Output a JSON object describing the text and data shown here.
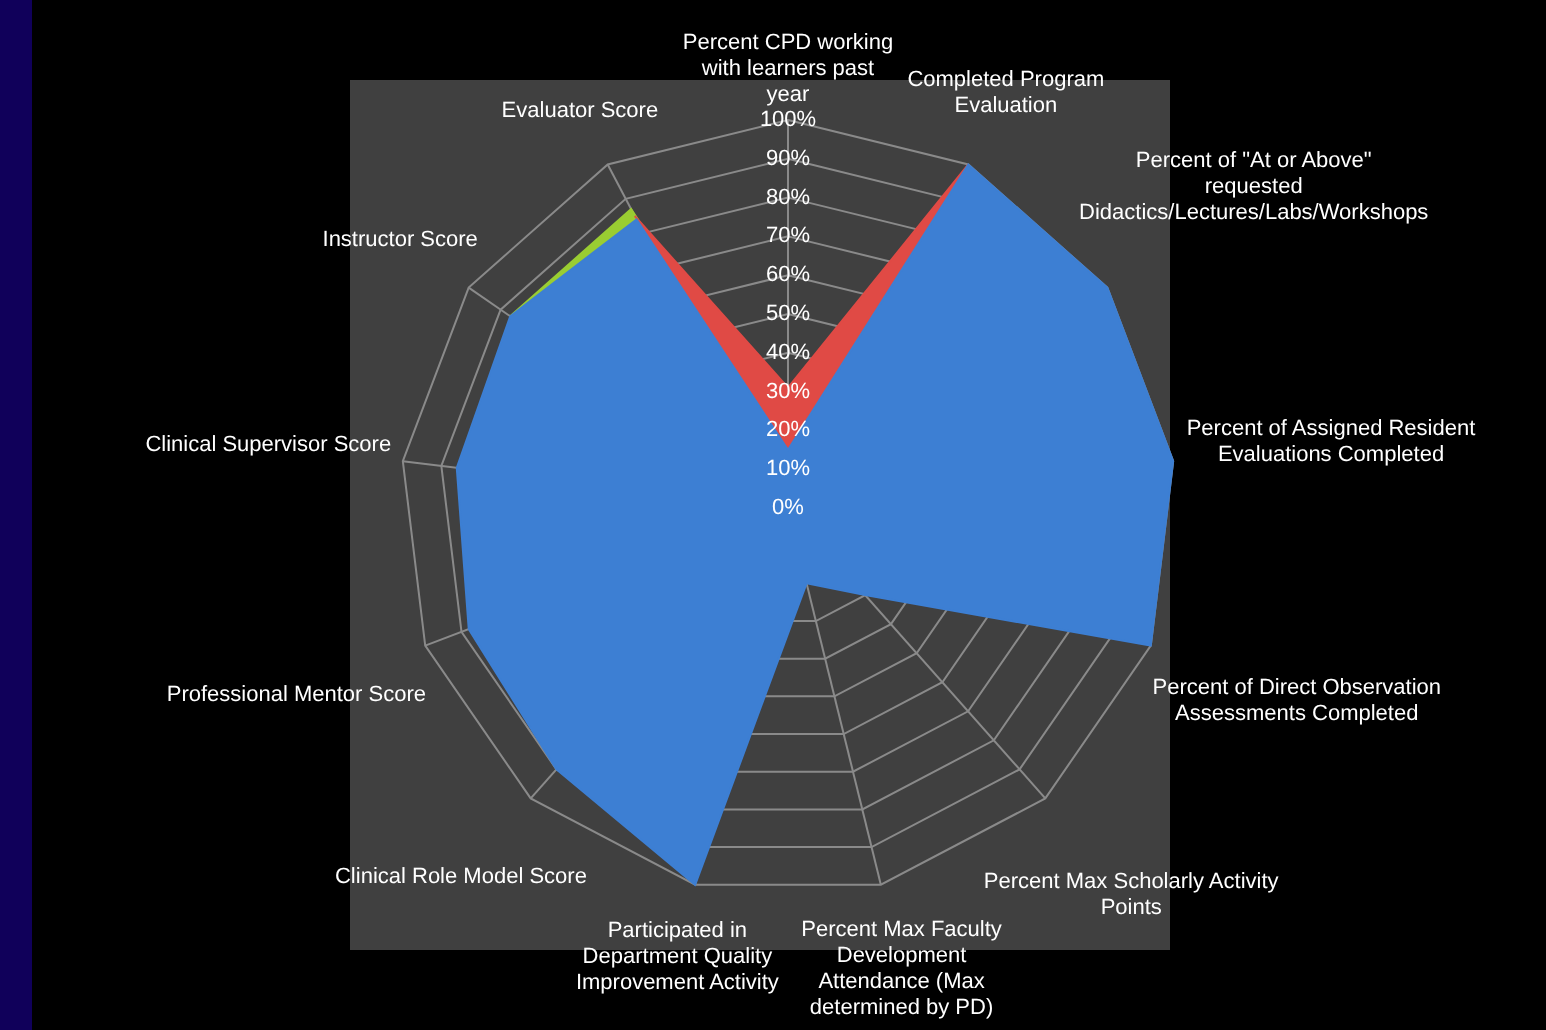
{
  "chart_data": {
    "type": "radar",
    "categories": [
      "Percent CPD working with learners past year",
      "Completed Program Evaluation",
      "Percent of \"At or Above\" requested Didactics/Lectures/Labs/Workshops",
      "Percent of Assigned Resident Evaluations Completed",
      "Percent of Direct Observation Assessments Completed",
      "Percent Max Scholarly Activity Points",
      "Percent Max Faculty Development Attendance (Max determined by PD)",
      "Participated in Department Quality Improvement Activity",
      "Clinical Role Model Score",
      "Professional Mentor Score",
      "Clinical Supervisor Score",
      "Instructor Score",
      "Evaluator Score"
    ],
    "series": [
      {
        "color": "#3d7fd3",
        "values": [
          15,
          100,
          100,
          100,
          100,
          30,
          20,
          100,
          90,
          88,
          86,
          87,
          84
        ]
      },
      {
        "color": "#e04a45",
        "values": [
          31,
          100,
          null,
          null,
          null,
          null,
          null,
          null,
          null,
          null,
          null,
          null,
          85
        ]
      },
      {
        "color": "#9acd32",
        "values": [
          15,
          null,
          null,
          null,
          null,
          null,
          null,
          null,
          null,
          null,
          null,
          87,
          87
        ]
      }
    ],
    "ylim": [
      0,
      100
    ],
    "yticks": [
      {
        "value": 0,
        "label": "0%"
      },
      {
        "value": 10,
        "label": "10%"
      },
      {
        "value": 20,
        "label": "20%"
      },
      {
        "value": 30,
        "label": "30%"
      },
      {
        "value": 40,
        "label": "40%"
      },
      {
        "value": 50,
        "label": "50%"
      },
      {
        "value": 60,
        "label": "60%"
      },
      {
        "value": 70,
        "label": "70%"
      },
      {
        "value": 80,
        "label": "80%"
      },
      {
        "value": 90,
        "label": "90%"
      },
      {
        "value": 100,
        "label": "100%"
      }
    ],
    "grid": true,
    "legend": false,
    "marker": "none"
  }
}
